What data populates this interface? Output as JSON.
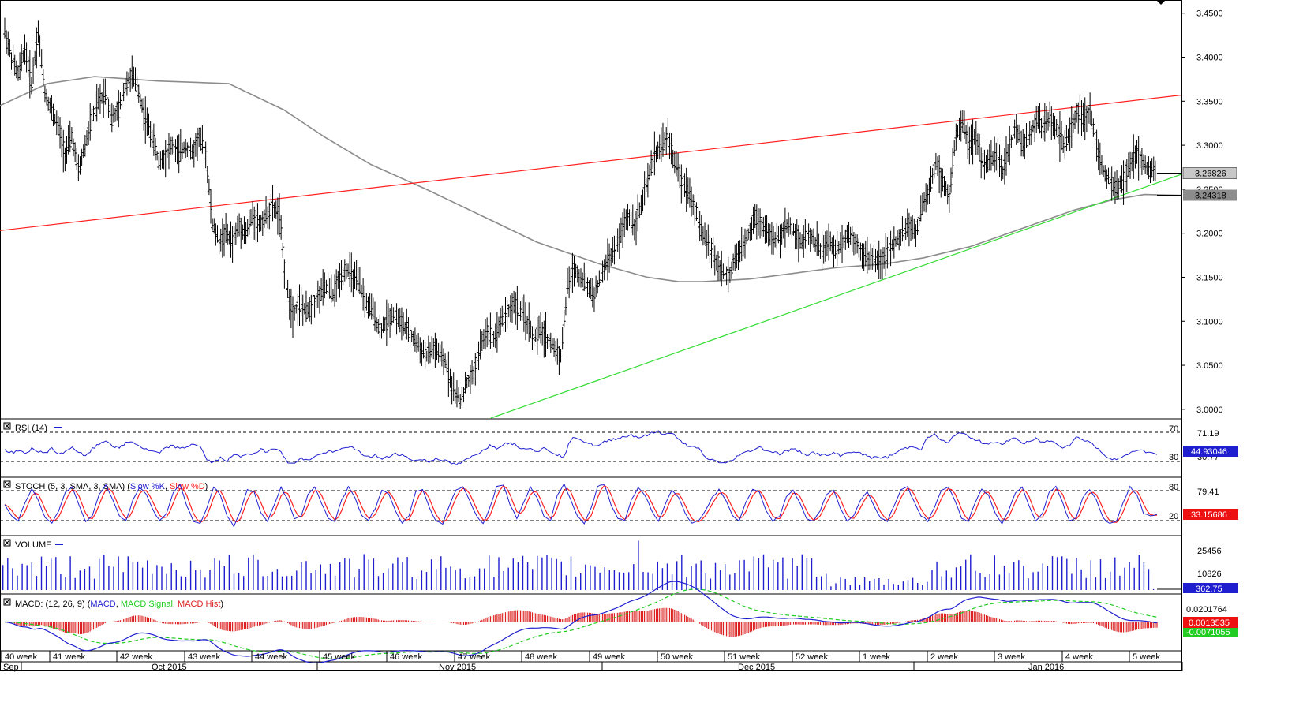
{
  "colors": {
    "candle": "#000000",
    "ma": "#8c8c8c",
    "resistance": "#ff2020",
    "support": "#33dd33",
    "rsi": "#1f1fd0",
    "stoch_k": "#1f1fd0",
    "stoch_d": "#ff2020",
    "volume": "#1f1fd0",
    "macd": "#1f1fd0",
    "macd_signal": "#22cc22",
    "macd_hist": "#dd2020",
    "price_badge": "#c8c8c8",
    "ma_badge": "#8c8c8c",
    "rsi_badge": "#1f1fd0",
    "stoch_badge": "#ee1111",
    "volume_badge": "#1f1fd0",
    "macd_badge": "#ee1111",
    "macd2_badge": "#22cc22"
  },
  "panels": {
    "rsi": {
      "label": "RSI (14)"
    },
    "stoch": {
      "label_prefix": "STOCH (5, 3, SMA, 3, SMA) (",
      "label_k": "Slow %K",
      "label_sep": ", ",
      "label_d": "Slow %D",
      "label_suffix": ")"
    },
    "volume": {
      "label": "VOLUME"
    },
    "macd": {
      "label_prefix": "MACD: (12, 26, 9) (",
      "label_macd": "MACD",
      "label_signal": "MACD Signal",
      "label_hist": "MACD Hist",
      "label_suffix": ")"
    }
  },
  "chart_data": {
    "type": "candlestick",
    "price_axis": {
      "min": 2.99,
      "max": 3.465,
      "ticks": [
        "3.0000",
        "3.0500",
        "3.1000",
        "3.1500",
        "3.2000",
        "3.2500",
        "3.3000",
        "3.3500",
        "3.4000",
        "3.4500"
      ],
      "last_price": "3.26826",
      "ma_value": "3.24318"
    },
    "price_path": [
      3.43,
      3.4,
      3.38,
      3.41,
      3.37,
      3.43,
      3.36,
      3.34,
      3.32,
      3.29,
      3.31,
      3.27,
      3.3,
      3.33,
      3.35,
      3.36,
      3.33,
      3.34,
      3.37,
      3.38,
      3.36,
      3.33,
      3.31,
      3.28,
      3.29,
      3.3,
      3.29,
      3.3,
      3.29,
      3.31,
      3.29,
      3.21,
      3.19,
      3.2,
      3.19,
      3.21,
      3.2,
      3.22,
      3.21,
      3.22,
      3.23,
      3.22,
      3.14,
      3.11,
      3.12,
      3.11,
      3.12,
      3.13,
      3.14,
      3.13,
      3.15,
      3.16,
      3.15,
      3.14,
      3.12,
      3.11,
      3.09,
      3.1,
      3.11,
      3.1,
      3.09,
      3.08,
      3.07,
      3.06,
      3.07,
      3.06,
      3.05,
      3.02,
      3.01,
      3.03,
      3.04,
      3.07,
      3.09,
      3.08,
      3.1,
      3.11,
      3.12,
      3.11,
      3.1,
      3.08,
      3.09,
      3.08,
      3.07,
      3.06,
      3.14,
      3.16,
      3.15,
      3.14,
      3.13,
      3.15,
      3.17,
      3.18,
      3.2,
      3.22,
      3.21,
      3.23,
      3.26,
      3.29,
      3.3,
      3.31,
      3.28,
      3.26,
      3.25,
      3.23,
      3.2,
      3.19,
      3.17,
      3.16,
      3.15,
      3.17,
      3.18,
      3.2,
      3.22,
      3.21,
      3.2,
      3.19,
      3.2,
      3.21,
      3.2,
      3.19,
      3.2,
      3.19,
      3.18,
      3.19,
      3.18,
      3.19,
      3.2,
      3.19,
      3.18,
      3.17,
      3.17,
      3.17,
      3.18,
      3.19,
      3.2,
      3.21,
      3.2,
      3.23,
      3.25,
      3.28,
      3.26,
      3.24,
      3.31,
      3.33,
      3.3,
      3.31,
      3.28,
      3.28,
      3.29,
      3.27,
      3.3,
      3.32,
      3.3,
      3.31,
      3.33,
      3.32,
      3.33,
      3.32,
      3.3,
      3.31,
      3.34,
      3.33,
      3.34,
      3.3,
      3.27,
      3.26,
      3.25,
      3.26,
      3.28,
      3.29,
      3.28,
      3.27,
      3.268
    ],
    "moving_average": [
      [
        0,
        3.345
      ],
      [
        60,
        3.37
      ],
      [
        120,
        3.378
      ],
      [
        200,
        3.373
      ],
      [
        290,
        3.37
      ],
      [
        360,
        3.34
      ],
      [
        410,
        3.31
      ],
      [
        470,
        3.278
      ],
      [
        540,
        3.25
      ],
      [
        610,
        3.22
      ],
      [
        680,
        3.19
      ],
      [
        760,
        3.165
      ],
      [
        820,
        3.15
      ],
      [
        860,
        3.145
      ],
      [
        890,
        3.145
      ],
      [
        950,
        3.148
      ],
      [
        1010,
        3.155
      ],
      [
        1060,
        3.161
      ],
      [
        1120,
        3.165
      ],
      [
        1170,
        3.172
      ],
      [
        1230,
        3.185
      ],
      [
        1300,
        3.207
      ],
      [
        1360,
        3.226
      ],
      [
        1410,
        3.238
      ],
      [
        1450,
        3.244
      ],
      [
        1497,
        3.243
      ]
    ],
    "resistance_line": {
      "from": [
        0,
        3.203
      ],
      "to": [
        1497,
        3.357
      ]
    },
    "support_line": {
      "from": [
        622,
        2.99
      ],
      "to": [
        1497,
        3.267
      ]
    },
    "rsi": {
      "levels": [
        "70",
        "30"
      ],
      "axis_ticks": [
        "71.19",
        "30.77"
      ],
      "value": "44.93046",
      "series": [
        52,
        48,
        50,
        46,
        54,
        49,
        47,
        55,
        44,
        50,
        56,
        48,
        42,
        53,
        60,
        66,
        58,
        54,
        62,
        64,
        57,
        52,
        49,
        47,
        55,
        58,
        53,
        56,
        61,
        57,
        37,
        33,
        40,
        36,
        44,
        42,
        47,
        45,
        52,
        49,
        55,
        51,
        31,
        34,
        39,
        36,
        43,
        45,
        50,
        48,
        53,
        57,
        52,
        46,
        41,
        44,
        38,
        42,
        47,
        44,
        39,
        36,
        38,
        34,
        40,
        37,
        33,
        30,
        34,
        40,
        45,
        52,
        58,
        55,
        60,
        63,
        58,
        53,
        56,
        49,
        54,
        50,
        45,
        41,
        67,
        70,
        64,
        60,
        57,
        63,
        67,
        69,
        71,
        74,
        70,
        72,
        76,
        79,
        74,
        77,
        66,
        60,
        56,
        53,
        40,
        37,
        34,
        32,
        36,
        45,
        48,
        52,
        56,
        51,
        49,
        46,
        50,
        53,
        49,
        45,
        48,
        45,
        43,
        47,
        44,
        47,
        50,
        46,
        43,
        40,
        41,
        41,
        46,
        52,
        55,
        57,
        53,
        70,
        74,
        66,
        61,
        74,
        78,
        70,
        67,
        63,
        61,
        64,
        58,
        66,
        70,
        61,
        63,
        68,
        63,
        65,
        62,
        56,
        59,
        70,
        67,
        64,
        55,
        46,
        40,
        38,
        41,
        48,
        52,
        50,
        48,
        45
      ],
      "min": 14,
      "max": 96
    },
    "stoch": {
      "levels": [
        "80",
        "20"
      ],
      "axis_ticks": [
        "79.41"
      ],
      "value": "33.15686",
      "k_series": [
        50,
        30,
        20,
        55,
        80,
        60,
        25,
        15,
        40,
        75,
        85,
        50,
        20,
        30,
        70,
        90,
        60,
        30,
        20,
        60,
        85,
        70,
        40,
        20,
        35,
        75,
        88,
        50,
        20,
        15,
        45,
        85,
        70,
        30,
        10,
        40,
        80,
        75,
        35,
        20,
        50,
        85,
        60,
        25,
        30,
        70,
        85,
        55,
        25,
        20,
        60,
        85,
        65,
        30,
        20,
        45,
        80,
        70,
        40,
        15,
        30,
        75,
        80,
        45,
        20,
        15,
        50,
        80,
        85,
        60,
        30,
        15,
        45,
        85,
        90,
        50,
        25,
        55,
        85,
        65,
        30,
        20,
        70,
        90,
        60,
        30,
        15,
        45,
        85,
        90,
        50,
        25,
        20,
        60,
        85,
        70,
        40,
        20,
        50,
        80,
        65,
        35,
        15,
        20,
        40,
        65,
        80,
        60,
        30,
        20,
        55,
        80,
        75,
        40,
        20,
        30,
        65,
        80,
        55,
        25,
        20,
        40,
        70,
        80,
        45,
        20,
        30,
        60,
        75,
        50,
        25,
        20,
        50,
        80,
        85,
        55,
        30,
        20,
        45,
        80,
        85,
        60,
        25,
        20,
        55,
        80,
        70,
        35,
        15,
        40,
        75,
        85,
        50,
        20,
        35,
        75,
        85,
        55,
        20,
        25,
        65,
        80,
        60,
        25,
        15,
        20,
        55,
        85,
        70,
        35,
        30,
        33
      ],
      "min": -5,
      "max": 102
    },
    "volume": {
      "axis_ticks": [
        "25456",
        "10826"
      ],
      "value": "362.75",
      "max": 29000
    },
    "macd": {
      "axis_ticks": [
        "0.0201764"
      ],
      "value": "0.0013535",
      "signal_value": "-0.0071055",
      "min": -0.032,
      "max": 0.032
    },
    "x_axis": {
      "weeks": [
        {
          "x": 2,
          "label": "40 week"
        },
        {
          "x": 63,
          "label": "41 week"
        },
        {
          "x": 148,
          "label": "42 week"
        },
        {
          "x": 234,
          "label": "43 week"
        },
        {
          "x": 319,
          "label": "44 week"
        },
        {
          "x": 405,
          "label": "45 week"
        },
        {
          "x": 490,
          "label": "46 week"
        },
        {
          "x": 576,
          "label": "47 week"
        },
        {
          "x": 661,
          "label": "48 week"
        },
        {
          "x": 747,
          "label": "49 week"
        },
        {
          "x": 833,
          "label": "50 week"
        },
        {
          "x": 918,
          "label": "51 week"
        },
        {
          "x": 1004,
          "label": "52 week"
        },
        {
          "x": 1089,
          "label": "1 week"
        },
        {
          "x": 1175,
          "label": "2 week"
        },
        {
          "x": 1260,
          "label": "3 week"
        },
        {
          "x": 1346,
          "label": "4 week"
        },
        {
          "x": 1431,
          "label": "5 week"
        }
      ],
      "months": [
        {
          "x": 4,
          "tick": 27,
          "label": "Sep"
        },
        {
          "x": 192,
          "tick": 402,
          "label": "Oct 2015"
        },
        {
          "x": 556,
          "tick": 763,
          "label": "Nov 2015"
        },
        {
          "x": 935,
          "tick": 1158,
          "label": "Dec 2015"
        },
        {
          "x": 1303,
          "tick": 1498,
          "label": "Jan 2016"
        }
      ]
    }
  }
}
